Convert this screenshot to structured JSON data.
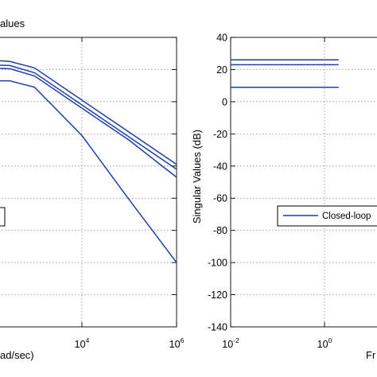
{
  "chart_data": [
    {
      "type": "line",
      "title": "alues",
      "xlabel": "ad/sec)",
      "x_scale": "log",
      "x_ticks": [
        {
          "value": 10000,
          "base": "10",
          "exp": "4"
        },
        {
          "value": 1000000,
          "base": "10",
          "exp": "6"
        }
      ],
      "line_color": "#1f3fa8",
      "series": [
        {
          "x": [
            100,
            300,
            1000,
            10000,
            100000,
            1000000
          ],
          "y": [
            26,
            25,
            21,
            1,
            -19,
            -39
          ]
        },
        {
          "x": [
            100,
            300,
            1000,
            10000,
            100000,
            1000000
          ],
          "y": [
            23,
            22.5,
            18,
            -2,
            -22,
            -42
          ]
        },
        {
          "x": [
            100,
            300,
            1000,
            10000,
            100000,
            1000000
          ],
          "y": [
            21,
            20.5,
            16,
            -4,
            -24,
            -47
          ]
        },
        {
          "x": [
            100,
            300,
            1000,
            10000,
            100000,
            1000000
          ],
          "y": [
            13,
            13,
            9,
            -21,
            -61,
            -100
          ]
        }
      ]
    },
    {
      "type": "line",
      "title": "",
      "xlabel": "Fr",
      "ylabel": "Singular Values (dB)",
      "x_scale": "log",
      "xlim": [
        0.01,
        2
      ],
      "ylim": [
        -140,
        40
      ],
      "yticks": [
        40,
        20,
        0,
        -20,
        -40,
        -60,
        -80,
        -100,
        -120,
        -140
      ],
      "x_ticks": [
        {
          "value": 0.01,
          "base": "10",
          "exp": "-2"
        },
        {
          "value": 1,
          "base": "10",
          "exp": "0"
        }
      ],
      "legend": "Closed-loop",
      "line_color": "#1f3fa8",
      "series": [
        {
          "x": [
            0.01,
            2
          ],
          "y": [
            26,
            26
          ]
        },
        {
          "x": [
            0.01,
            2
          ],
          "y": [
            23,
            23
          ]
        },
        {
          "x": [
            0.01,
            2
          ],
          "y": [
            9,
            9
          ]
        }
      ]
    }
  ]
}
